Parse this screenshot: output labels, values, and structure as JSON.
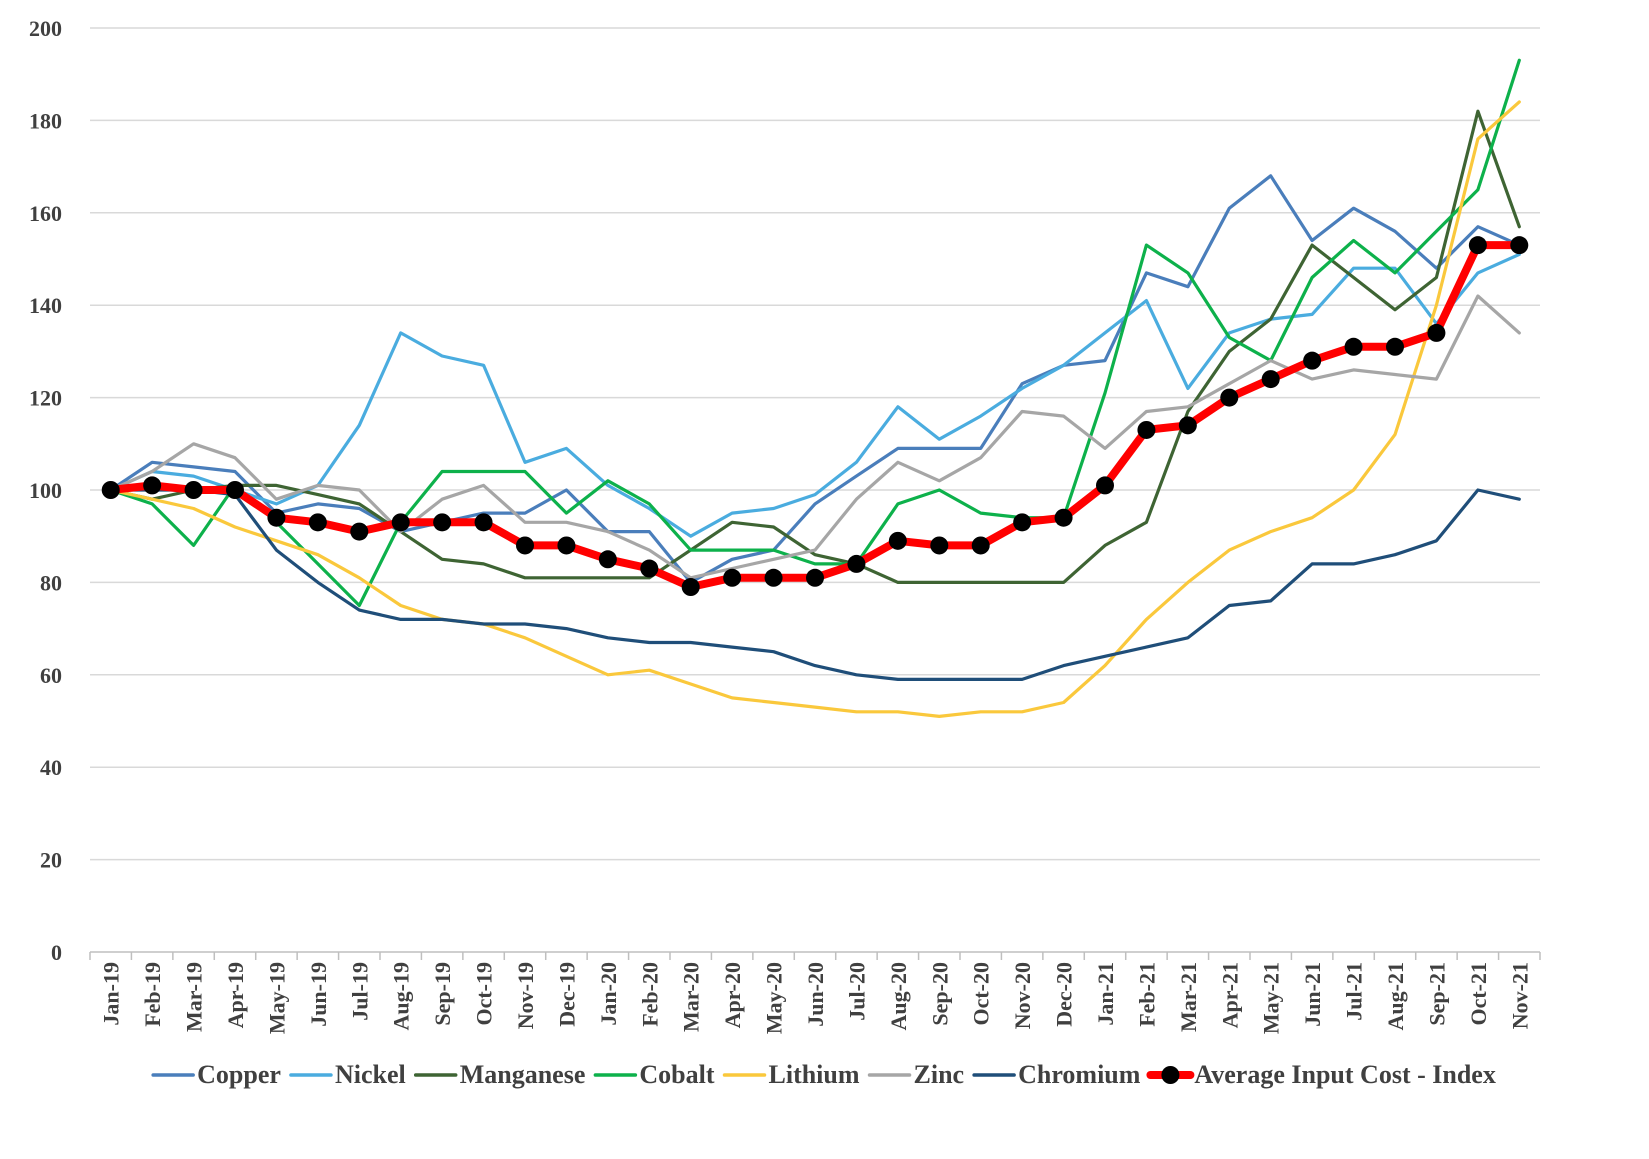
{
  "chart_data": {
    "type": "line",
    "title": "",
    "xlabel": "",
    "ylabel": "",
    "ylim": [
      0,
      200
    ],
    "yticks": [
      0,
      20,
      40,
      60,
      80,
      100,
      120,
      140,
      160,
      180,
      200
    ],
    "grid": "horizontal",
    "legend_position": "bottom",
    "categories": [
      "Jan-19",
      "Feb-19",
      "Mar-19",
      "Apr-19",
      "May-19",
      "Jun-19",
      "Jul-19",
      "Aug-19",
      "Sep-19",
      "Oct-19",
      "Nov-19",
      "Dec-19",
      "Jan-20",
      "Feb-20",
      "Mar-20",
      "Apr-20",
      "May-20",
      "Jun-20",
      "Jul-20",
      "Aug-20",
      "Sep-20",
      "Oct-20",
      "Nov-20",
      "Dec-20",
      "Jan-21",
      "Feb-21",
      "Mar-21",
      "Apr-21",
      "May-21",
      "Jun-21",
      "Jul-21",
      "Aug-21",
      "Sep-21",
      "Oct-21",
      "Nov-21"
    ],
    "series": [
      {
        "name": "Copper",
        "color": "#4a7ebb",
        "values": [
          100,
          106,
          105,
          104,
          95,
          97,
          96,
          91,
          93,
          95,
          95,
          100,
          91,
          91,
          80,
          85,
          87,
          97,
          103,
          109,
          109,
          109,
          123,
          127,
          128,
          147,
          144,
          161,
          168,
          154,
          161,
          156,
          148,
          157,
          153
        ]
      },
      {
        "name": "Nickel",
        "color": "#4aacdf",
        "values": [
          100,
          104,
          103,
          100,
          97,
          101,
          114,
          134,
          129,
          127,
          106,
          109,
          101,
          96,
          90,
          95,
          96,
          99,
          106,
          118,
          111,
          116,
          122,
          127,
          134,
          141,
          122,
          134,
          137,
          138,
          148,
          148,
          136,
          147,
          151
        ]
      },
      {
        "name": "Manganese",
        "color": "#3e6433",
        "values": [
          100,
          98,
          100,
          101,
          101,
          99,
          97,
          91,
          85,
          84,
          81,
          81,
          81,
          81,
          87,
          93,
          92,
          86,
          84,
          80,
          80,
          80,
          80,
          80,
          88,
          93,
          117,
          130,
          137,
          153,
          146,
          139,
          146,
          182,
          157
        ]
      },
      {
        "name": "Cobalt",
        "color": "#0db14b",
        "values": [
          100,
          97,
          88,
          101,
          93,
          84,
          75,
          93,
          104,
          104,
          104,
          95,
          102,
          97,
          87,
          87,
          87,
          84,
          84,
          97,
          100,
          95,
          94,
          94,
          121,
          153,
          147,
          133,
          128,
          146,
          154,
          147,
          156,
          165,
          193
        ]
      },
      {
        "name": "Lithium",
        "color": "#fac83c",
        "values": [
          100,
          98,
          96,
          92,
          89,
          86,
          81,
          75,
          72,
          71,
          68,
          64,
          60,
          61,
          58,
          55,
          54,
          53,
          52,
          52,
          51,
          52,
          52,
          54,
          62,
          72,
          80,
          87,
          91,
          94,
          100,
          112,
          140,
          176,
          184
        ]
      },
      {
        "name": "Zinc",
        "color": "#a6a6a6",
        "values": [
          100,
          104,
          110,
          107,
          98,
          101,
          100,
          91,
          98,
          101,
          93,
          93,
          91,
          87,
          81,
          83,
          85,
          87,
          98,
          106,
          102,
          107,
          117,
          116,
          109,
          117,
          118,
          123,
          128,
          124,
          126,
          125,
          124,
          142,
          134
        ]
      },
      {
        "name": "Chromium",
        "color": "#1f4e79",
        "values": [
          100,
          100,
          100,
          99,
          87,
          80,
          74,
          72,
          72,
          71,
          71,
          70,
          68,
          67,
          67,
          66,
          65,
          62,
          60,
          59,
          59,
          59,
          59,
          62,
          64,
          66,
          68,
          75,
          76,
          84,
          84,
          86,
          89,
          100,
          98
        ]
      },
      {
        "name": "Average Input Cost - Index",
        "color": "#ff0000",
        "marker": "circle",
        "markerColor": "#000000",
        "values": [
          100,
          101,
          100,
          100,
          94,
          93,
          91,
          93,
          93,
          93,
          88,
          88,
          85,
          83,
          79,
          81,
          81,
          81,
          84,
          89,
          88,
          88,
          93,
          94,
          101,
          113,
          114,
          120,
          124,
          128,
          131,
          131,
          134,
          153,
          153
        ]
      }
    ]
  }
}
